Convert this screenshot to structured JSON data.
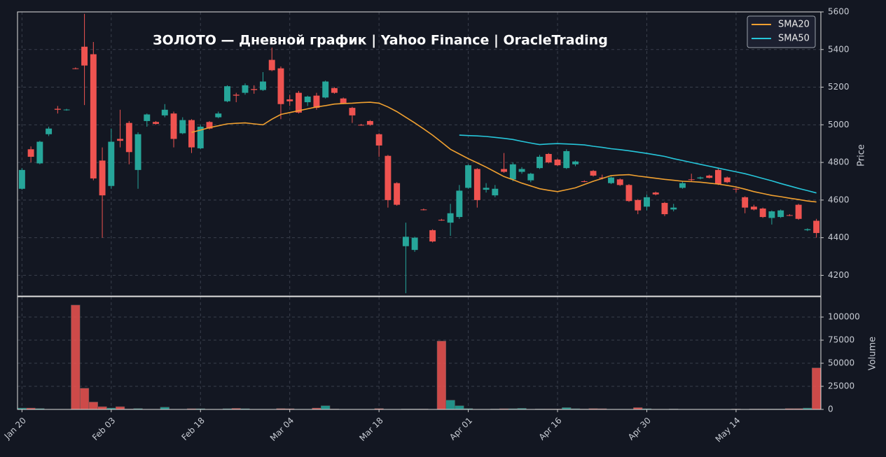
{
  "chart_data": {
    "type": "candlestick",
    "title": "ЗОЛОТО  —  Дневной график  |  Yahoo Finance  |  OracleTrading",
    "categories": [
      "Jan 20",
      null,
      null,
      null,
      null,
      null,
      null,
      null,
      null,
      null,
      "Feb 03",
      null,
      null,
      null,
      null,
      null,
      null,
      null,
      null,
      null,
      "Feb 18",
      null,
      null,
      null,
      null,
      null,
      null,
      null,
      null,
      null,
      "Mar 04",
      null,
      null,
      null,
      null,
      null,
      null,
      null,
      null,
      null,
      "Mar 18",
      null,
      null,
      null,
      null,
      null,
      null,
      null,
      null,
      null,
      "Apr 01",
      null,
      null,
      null,
      null,
      null,
      null,
      null,
      null,
      null,
      "Apr 16",
      null,
      null,
      null,
      null,
      null,
      null,
      null,
      null,
      null,
      "Apr 30",
      null,
      null,
      null,
      null,
      null,
      null,
      null,
      null,
      null,
      "May 14",
      null,
      null,
      null,
      null,
      null,
      null,
      null,
      null,
      null
    ],
    "open": [
      4660,
      4870,
      4795,
      4950,
      5085,
      5080,
      5300,
      5415,
      5375,
      4810,
      4675,
      4925,
      5010,
      4760,
      5020,
      5015,
      5050,
      5060,
      4955,
      5025,
      4875,
      5015,
      5040,
      5125,
      5160,
      5170,
      5190,
      5185,
      5345,
      5300,
      5135,
      5170,
      5120,
      5155,
      5145,
      5195,
      5140,
      5090,
      5000,
      5020,
      4950,
      4835,
      4690,
      4355,
      4335,
      4550,
      4440,
      4495,
      4480,
      4510,
      4665,
      4765,
      4655,
      4625,
      4765,
      4710,
      4750,
      4705,
      4770,
      4845,
      4815,
      4770,
      4790,
      4700,
      4755,
      4720,
      4690,
      4710,
      4680,
      4600,
      4565,
      4640,
      4585,
      4550,
      4665,
      4710,
      4715,
      4730,
      4760,
      4720,
      4660,
      4615,
      4565,
      4555,
      4505,
      4510,
      4520,
      4575,
      4440,
      4490
    ],
    "high": [
      4770,
      4885,
      4915,
      4990,
      5100,
      5085,
      5305,
      5590,
      5440,
      4880,
      4980,
      5080,
      5020,
      4960,
      5060,
      5020,
      5110,
      5070,
      5040,
      5030,
      5000,
      5020,
      5070,
      5210,
      5170,
      5220,
      5210,
      5280,
      5410,
      5310,
      5160,
      5180,
      5155,
      5170,
      5235,
      5200,
      5145,
      5095,
      5005,
      5025,
      4955,
      4840,
      4695,
      4480,
      4405,
      4555,
      4445,
      4500,
      4580,
      4680,
      4790,
      4770,
      4690,
      4680,
      4850,
      4800,
      4775,
      4745,
      4840,
      4850,
      4820,
      4870,
      4810,
      4705,
      4760,
      4735,
      4725,
      4715,
      4685,
      4605,
      4630,
      4645,
      4590,
      4580,
      4700,
      4740,
      4725,
      4735,
      4770,
      4725,
      4665,
      4620,
      4575,
      4560,
      4545,
      4550,
      4525,
      4580,
      4450,
      4500
    ],
    "low": [
      4655,
      4800,
      4790,
      4940,
      5060,
      5075,
      5295,
      5105,
      4705,
      4400,
      4660,
      4880,
      4790,
      4660,
      4990,
      5000,
      5040,
      4880,
      4950,
      4850,
      4870,
      4975,
      5035,
      5120,
      5120,
      5160,
      5165,
      5180,
      5285,
      5030,
      5100,
      5060,
      5100,
      5080,
      5140,
      5165,
      5110,
      5010,
      4995,
      4995,
      4830,
      4560,
      4570,
      4105,
      4325,
      4545,
      4375,
      4490,
      4410,
      4500,
      4660,
      4560,
      4640,
      4615,
      4745,
      4700,
      4740,
      4695,
      4765,
      4795,
      4780,
      4765,
      4780,
      4695,
      4725,
      4710,
      4685,
      4675,
      4590,
      4525,
      4545,
      4625,
      4515,
      4540,
      4660,
      4700,
      4710,
      4715,
      4680,
      4690,
      4640,
      4530,
      4545,
      4505,
      4470,
      4505,
      4515,
      4495,
      4435,
      4400
    ],
    "close": [
      4760,
      4830,
      4910,
      4980,
      5080,
      5081,
      5298,
      5315,
      4715,
      4625,
      4910,
      4915,
      4855,
      4950,
      5055,
      5005,
      5080,
      4925,
      5025,
      4880,
      4990,
      4980,
      5060,
      5205,
      5155,
      5210,
      5185,
      5230,
      5290,
      5110,
      5125,
      5065,
      5150,
      5090,
      5230,
      5170,
      5115,
      5050,
      4998,
      5000,
      4890,
      4600,
      4575,
      4405,
      4400,
      4548,
      4380,
      4493,
      4530,
      4650,
      4785,
      4600,
      4665,
      4660,
      4750,
      4790,
      4765,
      4740,
      4830,
      4800,
      4785,
      4860,
      4805,
      4698,
      4730,
      4718,
      4720,
      4680,
      4595,
      4545,
      4615,
      4630,
      4525,
      4560,
      4690,
      4708,
      4720,
      4718,
      4685,
      4695,
      4658,
      4560,
      4550,
      4510,
      4540,
      4545,
      4518,
      4500,
      4445,
      4425
    ],
    "up_color": "#26a69a",
    "down_color": "#ef5350",
    "series": [
      {
        "name": "SMA20",
        "color": "#f0a030",
        "values": [
          null,
          null,
          null,
          null,
          null,
          null,
          null,
          null,
          null,
          null,
          null,
          null,
          null,
          null,
          null,
          null,
          null,
          null,
          null,
          4960,
          4972,
          4985,
          4995,
          5005,
          5008,
          5010,
          5005,
          5000,
          5030,
          5055,
          5065,
          5075,
          5085,
          5095,
          5102,
          5110,
          5113,
          5115,
          5118,
          5120,
          5115,
          5095,
          5070,
          5040,
          5010,
          4978,
          4945,
          4908,
          4870,
          4845,
          4820,
          4798,
          4775,
          4750,
          4725,
          4708,
          4690,
          4675,
          4660,
          4652,
          4645,
          4655,
          4665,
          4683,
          4700,
          4715,
          4730,
          4733,
          4735,
          4728,
          4722,
          4716,
          4710,
          4705,
          4700,
          4698,
          4695,
          4690,
          4685,
          4678,
          4670,
          4658,
          4645,
          4635,
          4625,
          4618,
          4610,
          4603,
          4595,
          4590
        ]
      },
      {
        "name": "SMA50",
        "color": "#26c6da",
        "values": [
          null,
          null,
          null,
          null,
          null,
          null,
          null,
          null,
          null,
          null,
          null,
          null,
          null,
          null,
          null,
          null,
          null,
          null,
          null,
          null,
          null,
          null,
          null,
          null,
          null,
          null,
          null,
          null,
          null,
          null,
          null,
          null,
          null,
          null,
          null,
          null,
          null,
          null,
          null,
          null,
          null,
          null,
          null,
          null,
          null,
          null,
          null,
          null,
          null,
          4945,
          4943,
          4941,
          4938,
          4933,
          4928,
          4922,
          4912,
          4903,
          4895,
          4898,
          4900,
          4898,
          4896,
          4893,
          4886,
          4880,
          4873,
          4868,
          4862,
          4855,
          4848,
          4840,
          4832,
          4820,
          4810,
          4800,
          4790,
          4780,
          4770,
          4760,
          4750,
          4740,
          4728,
          4715,
          4702,
          4688,
          4675,
          4662,
          4650,
          4638
        ]
      }
    ],
    "ylabel": "Price",
    "ylim": [
      4090,
      5600
    ],
    "yticks": [
      4200,
      4400,
      4600,
      4800,
      5000,
      5200,
      5400,
      5600
    ],
    "grid": true,
    "legend": "upper right",
    "volume": {
      "ylabel": "Volume",
      "values": [
        1500,
        1500,
        1000,
        0,
        0,
        0,
        113000,
        23000,
        8000,
        3000,
        1500,
        3000,
        500,
        1000,
        0,
        0,
        2500,
        0,
        0,
        800,
        800,
        0,
        0,
        800,
        1200,
        800,
        0,
        0,
        0,
        1000,
        800,
        0,
        0,
        1500,
        4000,
        500,
        0,
        0,
        0,
        0,
        1000,
        0,
        0,
        500,
        500,
        500,
        0,
        74000,
        10000,
        4000,
        1000,
        0,
        0,
        500,
        800,
        800,
        1200,
        0,
        500,
        500,
        500,
        2000,
        800,
        500,
        1000,
        800,
        0,
        0,
        0,
        2000,
        800,
        0,
        0,
        500,
        0,
        0,
        0,
        0,
        0,
        0,
        500,
        0,
        500,
        500,
        500,
        500,
        1000,
        1000,
        1500,
        45000
      ],
      "ylim": [
        0,
        122000
      ],
      "yticks": [
        0,
        25000,
        50000,
        75000,
        100000
      ]
    }
  }
}
